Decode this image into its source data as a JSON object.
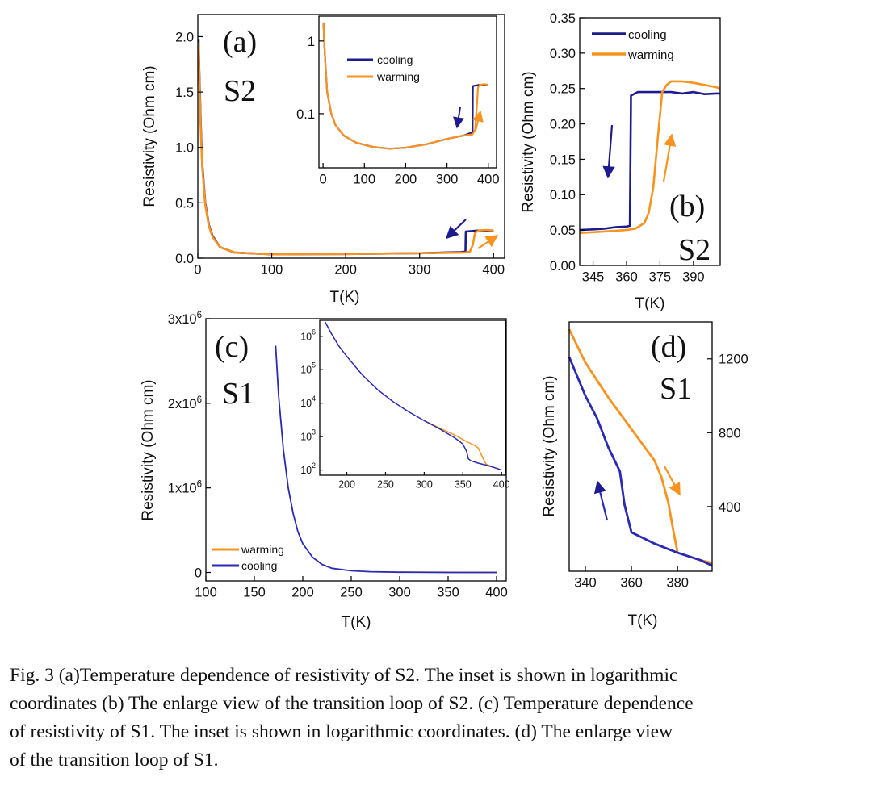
{
  "colors": {
    "cooling": "#1c1c8f",
    "warming": "#f7931e",
    "axis": "#000000"
  },
  "chart_data": [
    {
      "id": "a",
      "type": "line",
      "panel_label": "(a)",
      "sample_label": "S2",
      "xlabel": "T(K)",
      "ylabel": "Resistivity (Ohm cm)",
      "xlim": [
        0,
        415
      ],
      "ylim": [
        0,
        2.2
      ],
      "xticks": [
        0,
        100,
        200,
        300,
        400
      ],
      "yticks": [
        0.0,
        0.5,
        1.0,
        1.5,
        2.0
      ],
      "ytick_labels": [
        "0.0",
        "0.5",
        "1.0",
        "1.5",
        "2.0"
      ],
      "series": [
        {
          "name": "cooling",
          "color": "#1c1c8f",
          "x": [
            1,
            2,
            4,
            6,
            10,
            15,
            20,
            30,
            50,
            100,
            200,
            300,
            355,
            360,
            362,
            362.5,
            370,
            380,
            390,
            400
          ],
          "y": [
            1.98,
            1.7,
            1.2,
            0.85,
            0.5,
            0.3,
            0.2,
            0.1,
            0.05,
            0.035,
            0.038,
            0.045,
            0.055,
            0.058,
            0.06,
            0.24,
            0.245,
            0.25,
            0.245,
            0.245
          ]
        },
        {
          "name": "warming",
          "color": "#f7931e",
          "x": [
            1,
            2,
            4,
            6,
            10,
            15,
            20,
            30,
            50,
            100,
            200,
            300,
            355,
            362,
            368,
            372,
            375,
            380,
            390,
            400
          ],
          "y": [
            1.95,
            1.65,
            1.15,
            0.82,
            0.48,
            0.29,
            0.19,
            0.1,
            0.05,
            0.035,
            0.038,
            0.045,
            0.05,
            0.052,
            0.06,
            0.12,
            0.23,
            0.25,
            0.255,
            0.25
          ]
        }
      ],
      "inset": {
        "type": "line",
        "yscale": "log",
        "xlim": [
          -10,
          420
        ],
        "ylim": [
          0.018,
          2.2
        ],
        "xticks": [
          0,
          100,
          200,
          300,
          400
        ],
        "yticks": [
          1,
          0.1
        ],
        "ytick_labels": [
          "1",
          "0.1"
        ],
        "legend": [
          "cooling",
          "warming"
        ],
        "series": [
          {
            "name": "cooling",
            "color": "#1c1c8f",
            "x": [
              1,
              3,
              6,
              10,
              20,
              30,
              50,
              80,
              120,
              160,
              200,
              250,
              300,
              340,
              360,
              362,
              362.5,
              370,
              380,
              390,
              400
            ],
            "y": [
              1.8,
              0.9,
              0.45,
              0.2,
              0.1,
              0.07,
              0.05,
              0.04,
              0.035,
              0.033,
              0.034,
              0.038,
              0.045,
              0.05,
              0.055,
              0.058,
              0.24,
              0.245,
              0.25,
              0.245,
              0.245
            ]
          },
          {
            "name": "warming",
            "color": "#f7931e",
            "x": [
              1,
              3,
              6,
              10,
              20,
              30,
              50,
              80,
              120,
              160,
              200,
              250,
              300,
              340,
              362,
              368,
              372,
              375,
              380,
              390,
              400
            ],
            "y": [
              1.8,
              0.9,
              0.45,
              0.2,
              0.1,
              0.07,
              0.05,
              0.04,
              0.035,
              0.033,
              0.034,
              0.038,
              0.045,
              0.05,
              0.052,
              0.06,
              0.12,
              0.23,
              0.25,
              0.255,
              0.25
            ]
          }
        ]
      }
    },
    {
      "id": "b",
      "type": "line",
      "panel_label": "(b)",
      "sample_label": "S2",
      "xlabel": "T(K)",
      "ylabel": "Resistivity (Ohm cm)",
      "xlim": [
        339,
        402
      ],
      "ylim": [
        0,
        0.35
      ],
      "xticks": [
        345,
        360,
        375,
        390
      ],
      "yticks": [
        0.0,
        0.05,
        0.1,
        0.15,
        0.2,
        0.25,
        0.3,
        0.35
      ],
      "ytick_labels": [
        "0.00",
        "0.05",
        "0.10",
        "0.15",
        "0.20",
        "0.25",
        "0.30",
        "0.35"
      ],
      "legend": [
        "cooling",
        "warming"
      ],
      "series": [
        {
          "name": "cooling",
          "color": "#1c1c8f",
          "x": [
            339,
            345,
            350,
            355,
            360,
            361.5,
            362,
            365,
            370,
            375,
            380,
            385,
            390,
            395,
            400,
            402
          ],
          "y": [
            0.05,
            0.051,
            0.052,
            0.054,
            0.055,
            0.056,
            0.24,
            0.245,
            0.245,
            0.245,
            0.245,
            0.243,
            0.245,
            0.242,
            0.243,
            0.243
          ]
        },
        {
          "name": "warming",
          "color": "#f7931e",
          "x": [
            339,
            345,
            350,
            355,
            360,
            364,
            368,
            370,
            372,
            374,
            376,
            378,
            380,
            385,
            390,
            395,
            400,
            402
          ],
          "y": [
            0.046,
            0.047,
            0.048,
            0.049,
            0.05,
            0.052,
            0.06,
            0.075,
            0.11,
            0.18,
            0.245,
            0.255,
            0.26,
            0.26,
            0.258,
            0.255,
            0.252,
            0.25
          ]
        }
      ]
    },
    {
      "id": "c",
      "type": "line",
      "panel_label": "(c)",
      "sample_label": "S1",
      "xlabel": "T(K)",
      "ylabel": "Resistivity (Ohm cm)",
      "xlim": [
        100,
        410
      ],
      "ylim": [
        -100000,
        3000000
      ],
      "xticks": [
        100,
        150,
        200,
        250,
        300,
        350,
        400
      ],
      "yticks": [
        0,
        1000000,
        2000000,
        3000000
      ],
      "ytick_labels": [
        "0",
        "1x10^6",
        "2x10^6",
        "3x10^6"
      ],
      "legend": [
        "warming",
        "cooling"
      ],
      "series": [
        {
          "name": "warming",
          "color": "#f7931e",
          "x": [
            300,
            400
          ],
          "y": [
            4000,
            200
          ]
        },
        {
          "name": "cooling",
          "color": "#2a2ab5",
          "x": [
            172,
            175,
            180,
            185,
            190,
            195,
            200,
            210,
            220,
            230,
            250,
            270,
            300,
            350,
            400
          ],
          "y": [
            2680000,
            2100000,
            1450000,
            1000000,
            700000,
            480000,
            340000,
            180000,
            95000,
            50000,
            20000,
            9000,
            3000,
            200,
            100
          ]
        }
      ],
      "inset": {
        "type": "line",
        "yscale": "log",
        "xlim": [
          165,
          405
        ],
        "ylim": [
          70,
          3000000
        ],
        "xticks": [
          200,
          250,
          300,
          350,
          400
        ],
        "yticks": [
          100,
          1000,
          10000,
          100000,
          1000000
        ],
        "ytick_labels": [
          "10^2",
          "10^3",
          "10^4",
          "10^5",
          "10^6"
        ],
        "series": [
          {
            "name": "warming",
            "color": "#f7931e",
            "x": [
              300,
              320,
              340,
              355,
              365,
              370,
              375,
              380,
              390,
              400
            ],
            "y": [
              3000,
              1800,
              1100,
              700,
              550,
              450,
              250,
              150,
              120,
              100
            ]
          },
          {
            "name": "cooling",
            "color": "#2a2ab5",
            "x": [
              172,
              180,
              190,
              200,
              220,
              240,
              260,
              280,
              300,
              320,
              340,
              350,
              355,
              357,
              360,
              370,
              380,
              390,
              400
            ],
            "y": [
              2680000,
              1200000,
              500000,
              250000,
              70000,
              25000,
              11000,
              5500,
              3000,
              1700,
              900,
              600,
              350,
              220,
              190,
              160,
              140,
              120,
              100
            ]
          }
        ]
      }
    },
    {
      "id": "d",
      "type": "line",
      "panel_label": "(d)",
      "sample_label": "S1",
      "xlabel": "T(K)",
      "ylabel": "Resistivity (Ohm cm)",
      "xlim": [
        333,
        395
      ],
      "ylim": [
        50,
        1400
      ],
      "xticks": [
        340,
        360,
        380
      ],
      "yticks": [
        400,
        800,
        1200
      ],
      "series": [
        {
          "name": "warming",
          "color": "#f7931e",
          "x": [
            333,
            340,
            350,
            360,
            370,
            373,
            376,
            378,
            380,
            385,
            390,
            395
          ],
          "y": [
            1360,
            1180,
            990,
            820,
            650,
            560,
            420,
            280,
            150,
            130,
            110,
            95
          ]
        },
        {
          "name": "cooling",
          "color": "#2a2ab5",
          "x": [
            333,
            340,
            345,
            350,
            355,
            357,
            360,
            365,
            370,
            375,
            380,
            385,
            390,
            395
          ],
          "y": [
            1210,
            1000,
            880,
            720,
            590,
            410,
            260,
            230,
            200,
            175,
            150,
            130,
            110,
            80
          ]
        }
      ]
    }
  ],
  "caption": {
    "line1": "Fig. 3 (a)Temperature dependence of resistivity of S2. The inset is shown in logarithmic",
    "line2": "coordinates (b) The enlarge view of the transition loop of S2. (c) Temperature dependence",
    "line3": "of resistivity of S1. The inset is shown in logarithmic coordinates. (d) The enlarge view",
    "line4": "of the transition loop of S1."
  }
}
